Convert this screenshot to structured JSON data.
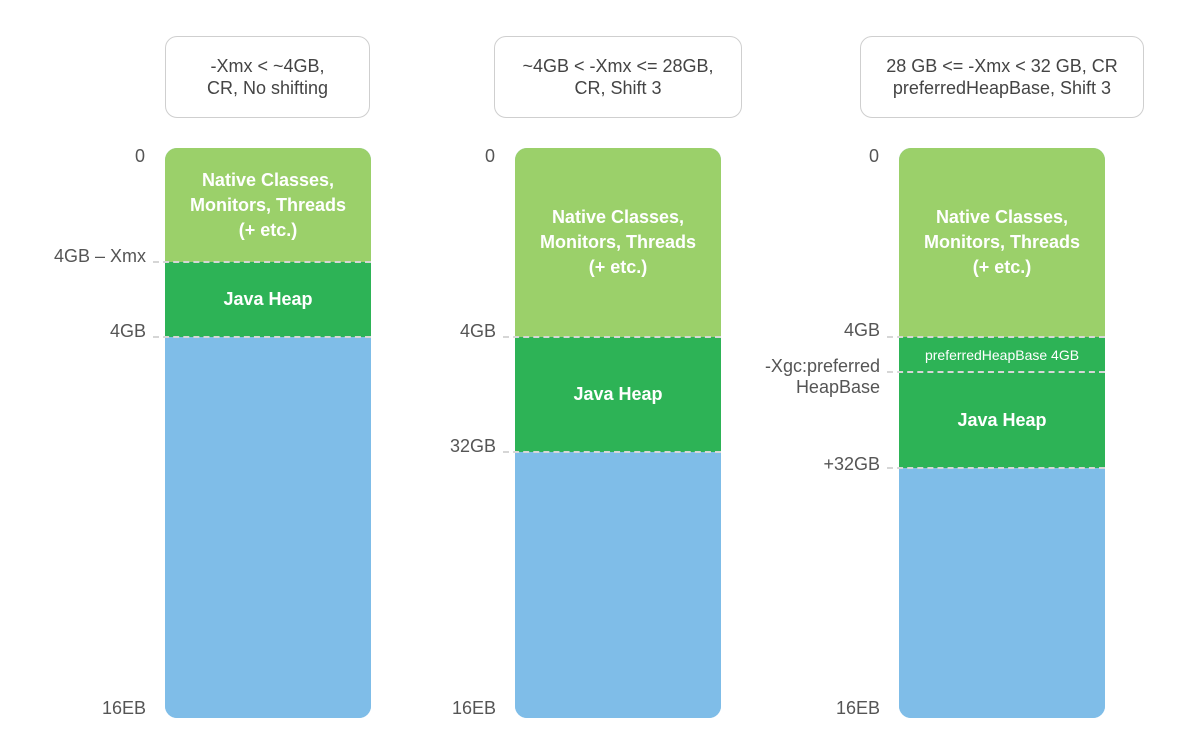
{
  "columns": [
    {
      "header": [
        "-Xmx < ~4GB,",
        "CR, No shifting"
      ],
      "labels": {
        "top": "0",
        "native_end": "4GB – Xmx",
        "heap_end": "4GB",
        "bottom": "16EB"
      },
      "segments": {
        "native": [
          "Native Classes,",
          "Monitors, Threads",
          "(+ etc.)"
        ],
        "heap": "Java Heap"
      }
    },
    {
      "header": [
        "~4GB < -Xmx <= 28GB,",
        "CR, Shift 3"
      ],
      "labels": {
        "top": "0",
        "native_end": "4GB",
        "heap_end": "32GB",
        "bottom": "16EB"
      },
      "segments": {
        "native": [
          "Native Classes,",
          "Monitors, Threads",
          "(+ etc.)"
        ],
        "heap": "Java Heap"
      }
    },
    {
      "header": [
        "28 GB <= -Xmx < 32 GB, CR",
        "preferredHeapBase, Shift 3"
      ],
      "labels": {
        "top": "0",
        "native_end": "4GB",
        "phb": [
          "-Xgc:preferred",
          "HeapBase"
        ],
        "heap_end": "+32GB",
        "bottom": "16EB"
      },
      "segments": {
        "native": [
          "Native Classes,",
          "Monitors, Threads",
          "(+ etc.)"
        ],
        "phb": "preferredHeapBase 4GB",
        "heap": "Java Heap"
      }
    }
  ],
  "colors": {
    "native": "#9bd06a",
    "heap": "#2db356",
    "free": "#7fbde8",
    "divider": "#d6d6d6"
  }
}
